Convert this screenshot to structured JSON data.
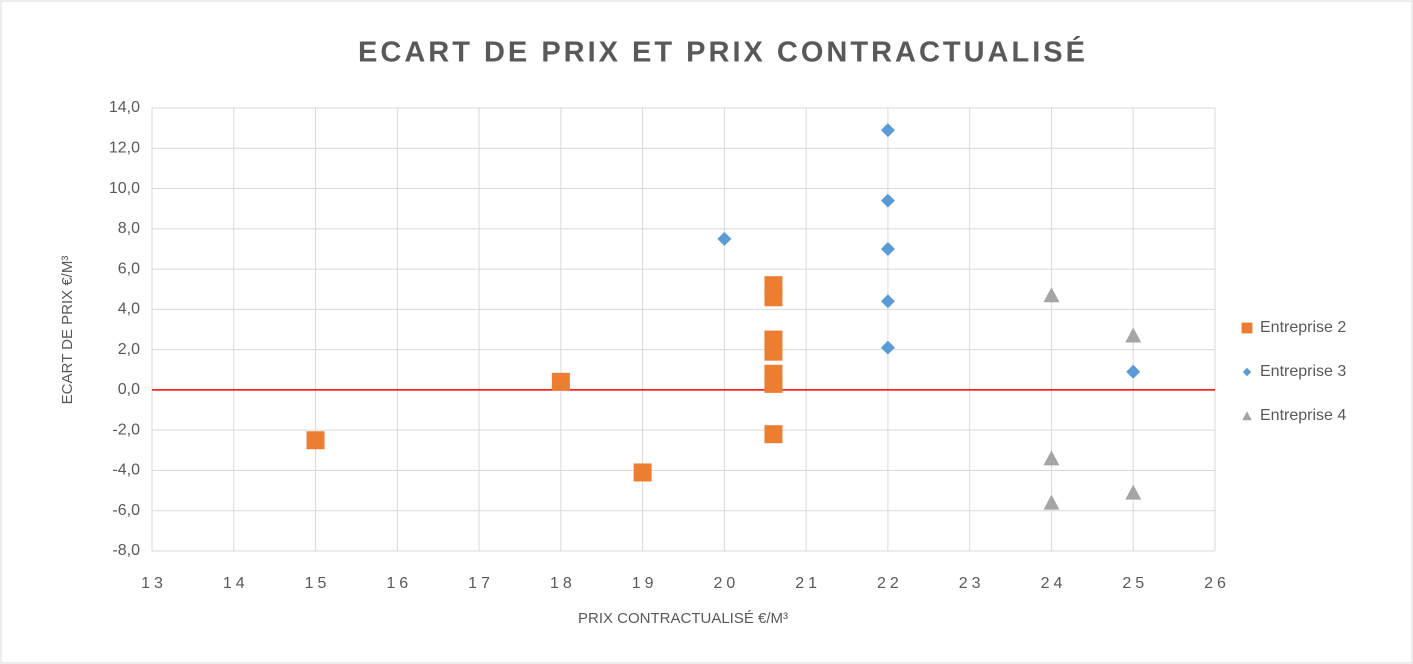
{
  "chart_data": {
    "type": "scatter",
    "title": "ECART DE PRIX ET PRIX CONTRACTUALISÉ",
    "x_label": "PRIX CONTRACTUALISÉ €/M³",
    "y_label": "ECART DE PRIX €/M³",
    "xlim": [
      13,
      26
    ],
    "xticks": [
      13,
      14,
      15,
      16,
      17,
      18,
      19,
      20,
      21,
      22,
      23,
      24,
      25,
      26
    ],
    "ylim": [
      -8,
      14
    ],
    "yticks": [
      {
        "value": -8,
        "label": "-8,0"
      },
      {
        "value": -6,
        "label": "-6,0"
      },
      {
        "value": -4,
        "label": "-4,0"
      },
      {
        "value": -2,
        "label": "-2,0"
      },
      {
        "value": 0,
        "label": "0,0"
      },
      {
        "value": 2,
        "label": "2,0"
      },
      {
        "value": 4,
        "label": "4,0"
      },
      {
        "value": 6,
        "label": "6,0"
      },
      {
        "value": 8,
        "label": "8,0"
      },
      {
        "value": 10,
        "label": "10,0"
      },
      {
        "value": 12,
        "label": "12,0"
      },
      {
        "value": 14,
        "label": "14,0"
      }
    ],
    "grid": true,
    "legend": "right",
    "hline": {
      "value": 0,
      "color": "#ff0000"
    },
    "series": [
      {
        "name": "Entreprise 2",
        "color": "#ed7d31",
        "marker": "square",
        "x": [
          15,
          18,
          19,
          20.6,
          20.6,
          20.6,
          20.6,
          20.6,
          20.6,
          20.6
        ],
        "values": [
          -2.5,
          0.4,
          -4.1,
          5.2,
          4.6,
          2.5,
          1.9,
          0.8,
          0.3,
          -2.2
        ]
      },
      {
        "name": "Entreprise 3",
        "color": "#5b9bd5",
        "marker": "diamond",
        "x": [
          20,
          22,
          22,
          22,
          22,
          22,
          25
        ],
        "values": [
          7.5,
          12.9,
          9.4,
          7.0,
          4.4,
          2.1,
          0.9
        ]
      },
      {
        "name": "Entreprise 4",
        "color": "#a5a5a5",
        "marker": "triangle",
        "x": [
          24,
          25,
          24,
          24,
          25
        ],
        "values": [
          4.7,
          2.7,
          -3.4,
          -5.6,
          -5.1
        ]
      }
    ]
  }
}
